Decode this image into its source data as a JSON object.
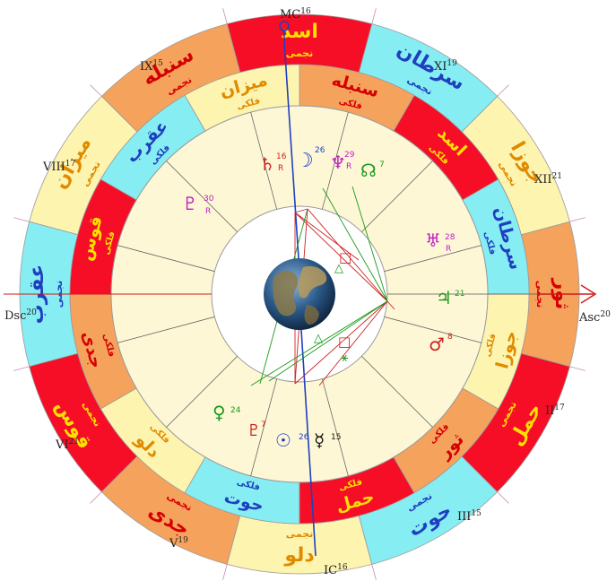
{
  "cusps": {
    "asc": {
      "label": "Asc",
      "degree": "20"
    },
    "mc": {
      "label": "MC",
      "degree": "16"
    },
    "dsc": {
      "label": "Dsc",
      "degree": "20"
    },
    "ic": {
      "label": "IC",
      "degree": "16"
    },
    "houses": [
      {
        "label": "II",
        "degree": "17"
      },
      {
        "label": "III",
        "degree": "15"
      },
      {
        "label": "V",
        "degree": "19"
      },
      {
        "label": "VI",
        "degree": "21"
      },
      {
        "label": "VIII",
        "degree": "17"
      },
      {
        "label": "IX",
        "degree": "15"
      },
      {
        "label": "XI",
        "degree": "19"
      },
      {
        "label": "XII",
        "degree": "21"
      }
    ]
  },
  "outer_ring": [
    {
      "sign": "ثور",
      "sub": "نجمی",
      "color": "#f5a25d",
      "text_color": "#d40000"
    },
    {
      "sign": "جوزا",
      "sub": "نجمی",
      "color": "#fdf4b0",
      "text_color": "#e08a00"
    },
    {
      "sign": "سرطان",
      "sub": "نجمی",
      "color": "#86edf2",
      "text_color": "#1f3fc0"
    },
    {
      "sign": "اسد",
      "sub": "نجمی",
      "color": "#f50e26",
      "text_color": "#ffe000"
    },
    {
      "sign": "سنبله",
      "sub": "نجمی",
      "color": "#f5a25d",
      "text_color": "#d40000"
    },
    {
      "sign": "میزان",
      "sub": "نجمی",
      "color": "#fdf4b0",
      "text_color": "#e08a00"
    },
    {
      "sign": "عقرب",
      "sub": "نجمی",
      "color": "#86edf2",
      "text_color": "#1f3fc0"
    },
    {
      "sign": "قوس",
      "sub": "نجمی",
      "color": "#f50e26",
      "text_color": "#ffe000"
    },
    {
      "sign": "جدی",
      "sub": "نجمی",
      "color": "#f5a25d",
      "text_color": "#d40000"
    },
    {
      "sign": "دلو",
      "sub": "نجمی",
      "color": "#fdf4b0",
      "text_color": "#e08a00"
    },
    {
      "sign": "حوت",
      "sub": "نجمی",
      "color": "#86edf2",
      "text_color": "#1f3fc0"
    },
    {
      "sign": "حمل",
      "sub": "نجمی",
      "color": "#f50e26",
      "text_color": "#ffe000"
    }
  ],
  "inner_ring": [
    {
      "sign": "جوزا",
      "sub": "فلکی",
      "color": "#fdf4b0",
      "text_color": "#e08a00"
    },
    {
      "sign": "سرطان",
      "sub": "فلکی",
      "color": "#86edf2",
      "text_color": "#1f3fc0"
    },
    {
      "sign": "اسد",
      "sub": "فلکی",
      "color": "#f50e26",
      "text_color": "#ffe000"
    },
    {
      "sign": "سنبله",
      "sub": "فلکی",
      "color": "#f5a25d",
      "text_color": "#d40000"
    },
    {
      "sign": "میزان",
      "sub": "فلکی",
      "color": "#fdf4b0",
      "text_color": "#e08a00"
    },
    {
      "sign": "عقرب",
      "sub": "فلکی",
      "color": "#86edf2",
      "text_color": "#1f3fc0"
    },
    {
      "sign": "قوس",
      "sub": "فلکی",
      "color": "#f50e26",
      "text_color": "#ffe000"
    },
    {
      "sign": "جدی",
      "sub": "فلکی",
      "color": "#f5a25d",
      "text_color": "#d40000"
    },
    {
      "sign": "دلو",
      "sub": "فلکی",
      "color": "#fdf4b0",
      "text_color": "#e08a00"
    },
    {
      "sign": "حوت",
      "sub": "فلکی",
      "color": "#86edf2",
      "text_color": "#1f3fc0"
    },
    {
      "sign": "حمل",
      "sub": "فلکی",
      "color": "#f50e26",
      "text_color": "#ffe000"
    },
    {
      "sign": "ثور",
      "sub": "فلکی",
      "color": "#f5a25d",
      "text_color": "#d40000"
    }
  ],
  "planets": [
    {
      "name": "saturn",
      "glyph": "♄",
      "degree": "16",
      "retro": "R",
      "color": "#cc2222"
    },
    {
      "name": "moon",
      "glyph": "☽",
      "degree": "26",
      "retro": "",
      "color": "#1f3fc0"
    },
    {
      "name": "neptune",
      "glyph": "♆",
      "degree": "29",
      "retro": "R",
      "color": "#c020c0"
    },
    {
      "name": "node",
      "glyph": "☊",
      "degree": "7",
      "retro": "",
      "color": "#1a9a1a"
    },
    {
      "name": "uranus",
      "glyph": "♅",
      "degree": "28",
      "retro": "R",
      "color": "#c020c0"
    },
    {
      "name": "jupiter",
      "glyph": "♃",
      "degree": "21",
      "retro": "",
      "color": "#1a9a1a"
    },
    {
      "name": "mars",
      "glyph": "♂",
      "degree": "8",
      "retro": "",
      "color": "#cc2222"
    },
    {
      "name": "mercury",
      "glyph": "☿",
      "degree": "15",
      "retro": "",
      "color": "#111111"
    },
    {
      "name": "sun",
      "glyph": "☉",
      "degree": "26",
      "retro": "",
      "color": "#1f3fc0"
    },
    {
      "name": "pluto2",
      "glyph": "♇",
      "degree": "7",
      "retro": "",
      "color": "#cc2222"
    },
    {
      "name": "venus",
      "glyph": "♀",
      "degree": "24",
      "retro": "",
      "color": "#1a9a1a"
    },
    {
      "name": "pluto",
      "glyph": "♇",
      "degree": "30",
      "retro": "R",
      "color": "#c020c0"
    }
  ],
  "aspect_glyphs": [
    {
      "glyph": "△",
      "color": "#1a9a1a"
    },
    {
      "glyph": "□",
      "color": "#cc2222"
    },
    {
      "glyph": "△",
      "color": "#1a9a1a"
    },
    {
      "glyph": "□",
      "color": "#cc2222"
    },
    {
      "glyph": "⚹",
      "color": "#1a9a1a"
    }
  ]
}
